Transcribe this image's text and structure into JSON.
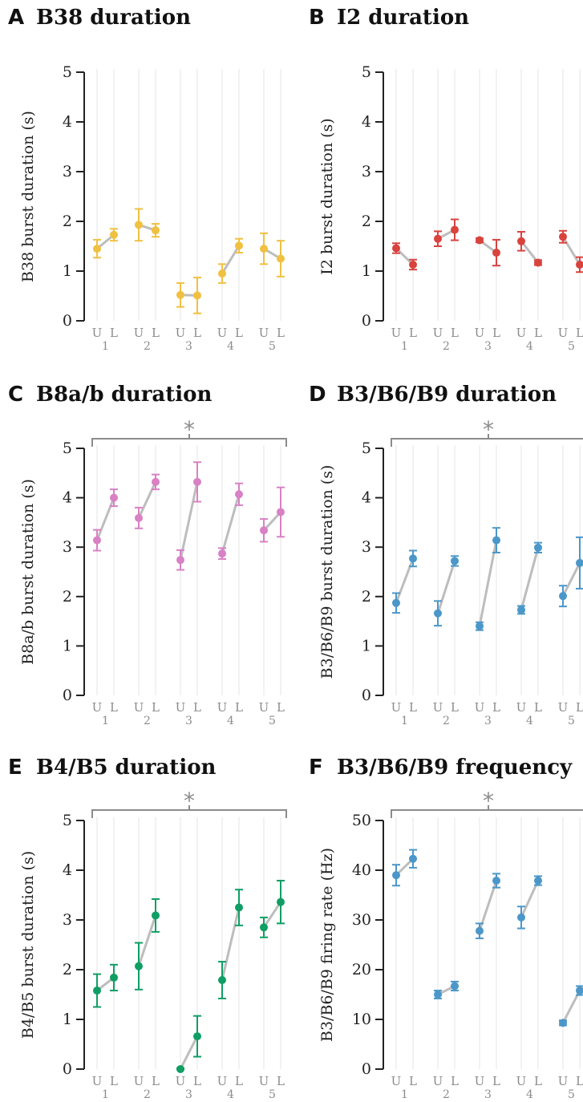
{
  "chart_data": [
    {
      "panel": "A",
      "title": "B38 duration",
      "type": "scatter",
      "ylabel": "B38 burst duration (s)",
      "ylim": [
        0,
        5
      ],
      "yticks": [
        0,
        1,
        2,
        3,
        4,
        5
      ],
      "color": "#f0c040",
      "significance": "",
      "groups": [
        "1",
        "2",
        "3",
        "4",
        "5"
      ],
      "conditions": [
        "U",
        "L"
      ],
      "values": [
        [
          1.45,
          1.73
        ],
        [
          1.93,
          1.82
        ],
        [
          0.52,
          0.51
        ],
        [
          0.95,
          1.51
        ],
        [
          1.45,
          1.25
        ]
      ],
      "errors": [
        [
          0.18,
          0.12
        ],
        [
          0.32,
          0.13
        ],
        [
          0.24,
          0.36
        ],
        [
          0.19,
          0.14
        ],
        [
          0.31,
          0.36
        ]
      ]
    },
    {
      "panel": "B",
      "title": "I2 duration",
      "type": "scatter",
      "ylabel": "I2 burst duration (s)",
      "ylim": [
        0,
        5
      ],
      "yticks": [
        0,
        1,
        2,
        3,
        4,
        5
      ],
      "color": "#d9433e",
      "significance": "",
      "groups": [
        "1",
        "2",
        "3",
        "4",
        "5"
      ],
      "conditions": [
        "U",
        "L"
      ],
      "values": [
        [
          1.46,
          1.13
        ],
        [
          1.65,
          1.83
        ],
        [
          1.62,
          1.37
        ],
        [
          1.6,
          1.17
        ],
        [
          1.69,
          1.13
        ]
      ],
      "errors": [
        [
          0.1,
          0.1
        ],
        [
          0.15,
          0.21
        ],
        [
          0.04,
          0.26
        ],
        [
          0.19,
          0.05
        ],
        [
          0.12,
          0.15
        ]
      ]
    },
    {
      "panel": "C",
      "title": "B8a/b duration",
      "type": "scatter",
      "ylabel": "B8a/b burst duration (s)",
      "ylim": [
        0,
        5
      ],
      "yticks": [
        0,
        1,
        2,
        3,
        4,
        5
      ],
      "color": "#d881c4",
      "significance": "*",
      "groups": [
        "1",
        "2",
        "3",
        "4",
        "5"
      ],
      "conditions": [
        "U",
        "L"
      ],
      "values": [
        [
          3.14,
          4.0
        ],
        [
          3.59,
          4.32
        ],
        [
          2.74,
          4.32
        ],
        [
          2.87,
          4.07
        ],
        [
          3.34,
          3.71
        ]
      ],
      "errors": [
        [
          0.21,
          0.17
        ],
        [
          0.21,
          0.15
        ],
        [
          0.2,
          0.4
        ],
        [
          0.11,
          0.22
        ],
        [
          0.23,
          0.5
        ]
      ]
    },
    {
      "panel": "D",
      "title": "B3/B6/B9 duration",
      "type": "scatter",
      "ylabel": "B3/B6/B9 burst duration (s)",
      "ylim": [
        0,
        5
      ],
      "yticks": [
        0,
        1,
        2,
        3,
        4,
        5
      ],
      "color": "#4b97c9",
      "significance": "*",
      "groups": [
        "1",
        "2",
        "3",
        "4",
        "5"
      ],
      "conditions": [
        "U",
        "L"
      ],
      "values": [
        [
          1.87,
          2.77
        ],
        [
          1.66,
          2.72
        ],
        [
          1.4,
          3.14
        ],
        [
          1.73,
          2.99
        ],
        [
          2.01,
          2.68
        ]
      ],
      "errors": [
        [
          0.2,
          0.16
        ],
        [
          0.25,
          0.1
        ],
        [
          0.08,
          0.25
        ],
        [
          0.08,
          0.1
        ],
        [
          0.21,
          0.52
        ]
      ]
    },
    {
      "panel": "E",
      "title": "B4/B5 duration",
      "type": "scatter",
      "ylabel": "B4/B5 burst duration (s)",
      "ylim": [
        0,
        5
      ],
      "yticks": [
        0,
        1,
        2,
        3,
        4,
        5
      ],
      "color": "#0f9e64",
      "significance": "*",
      "groups": [
        "1",
        "2",
        "3",
        "4",
        "5"
      ],
      "conditions": [
        "U",
        "L"
      ],
      "values": [
        [
          1.58,
          1.84
        ],
        [
          2.07,
          3.09
        ],
        [
          0.0,
          0.66
        ],
        [
          1.79,
          3.25
        ],
        [
          2.85,
          3.36
        ]
      ],
      "errors": [
        [
          0.33,
          0.26
        ],
        [
          0.47,
          0.33
        ],
        [
          0.02,
          0.41
        ],
        [
          0.37,
          0.36
        ],
        [
          0.2,
          0.43
        ]
      ]
    },
    {
      "panel": "F",
      "title": "B3/B6/B9 frequency",
      "type": "scatter",
      "ylabel": "B3/B6/B9 firing rate (Hz)",
      "ylim": [
        0,
        50
      ],
      "yticks": [
        0,
        10,
        20,
        30,
        40,
        50
      ],
      "color": "#4b97c9",
      "significance": "*",
      "groups": [
        "1",
        "2",
        "3",
        "4",
        "5"
      ],
      "conditions": [
        "U",
        "L"
      ],
      "values": [
        [
          39.0,
          42.3
        ],
        [
          15.0,
          16.7
        ],
        [
          27.8,
          37.9
        ],
        [
          30.5,
          37.9
        ],
        [
          9.3,
          15.8
        ]
      ],
      "errors": [
        [
          2.1,
          1.8
        ],
        [
          0.8,
          0.9
        ],
        [
          1.5,
          1.4
        ],
        [
          2.2,
          0.9
        ],
        [
          0.5,
          0.9
        ]
      ]
    }
  ]
}
